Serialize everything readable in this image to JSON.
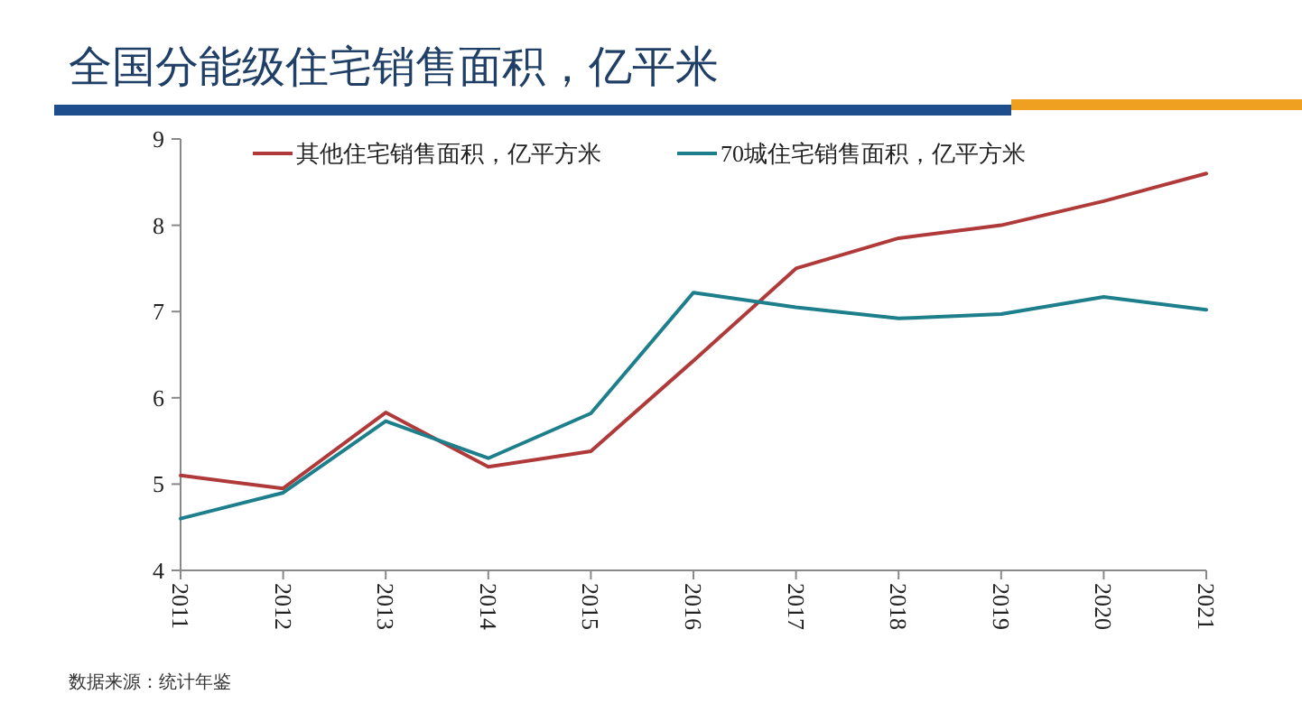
{
  "chart_data": {
    "type": "line",
    "title": "全国分能级住宅销售面积，亿平米",
    "categories": [
      "2011",
      "2012",
      "2013",
      "2014",
      "2015",
      "2016",
      "2017",
      "2018",
      "2019",
      "2020",
      "2021"
    ],
    "series": [
      {
        "name": "其他住宅销售面积，亿平方米",
        "color": "#b03a3a",
        "values": [
          5.1,
          4.95,
          5.83,
          5.2,
          5.38,
          6.43,
          7.5,
          7.85,
          8.0,
          8.28,
          8.6
        ]
      },
      {
        "name": "70城住宅销售面积，亿平方米",
        "color": "#1e7f8c",
        "values": [
          4.6,
          4.9,
          5.73,
          5.3,
          5.82,
          7.22,
          7.05,
          6.92,
          6.97,
          7.17,
          7.02
        ]
      }
    ],
    "ylim": [
      4,
      9
    ],
    "yticks": [
      4,
      5,
      6,
      7,
      8,
      9
    ],
    "grid": false,
    "legend": "top",
    "marker": "none",
    "line_style": "solid",
    "annotations": [
      "数据来源：统计年鉴"
    ]
  }
}
